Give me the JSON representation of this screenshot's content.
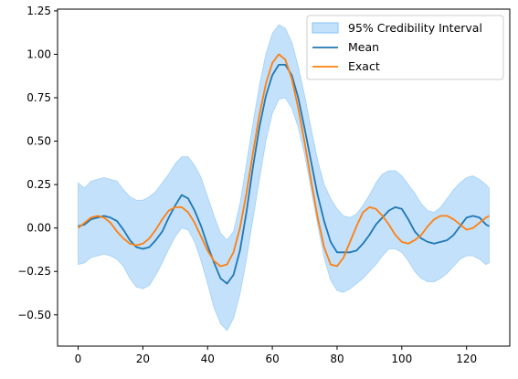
{
  "chart_data": {
    "type": "line",
    "title": "",
    "xlabel": "",
    "ylabel": "",
    "xlim": [
      -6.35,
      133.35
    ],
    "ylim": [
      -0.68,
      1.26
    ],
    "xticks": [
      0,
      20,
      40,
      60,
      80,
      100,
      120
    ],
    "xtick_labels": [
      "0",
      "20",
      "40",
      "60",
      "80",
      "100",
      "120"
    ],
    "yticks": [
      -0.5,
      -0.25,
      0.0,
      0.25,
      0.5,
      0.75,
      1.0,
      1.25
    ],
    "ytick_labels": [
      "−0.50",
      "−0.25",
      "0.00",
      "0.25",
      "0.50",
      "0.75",
      "1.00",
      "1.25"
    ],
    "grid": false,
    "legend_position": "top-right",
    "band": {
      "name": "95% Credibility Interval",
      "color": "#87c4f5",
      "x": [
        0,
        2,
        4,
        6,
        8,
        10,
        12,
        14,
        16,
        18,
        20,
        22,
        24,
        26,
        28,
        30,
        32,
        34,
        36,
        38,
        40,
        42,
        44,
        46,
        48,
        50,
        52,
        54,
        56,
        58,
        60,
        62,
        64,
        66,
        68,
        70,
        72,
        74,
        76,
        78,
        80,
        82,
        84,
        86,
        88,
        90,
        92,
        94,
        96,
        98,
        100,
        102,
        104,
        106,
        108,
        110,
        112,
        114,
        116,
        118,
        120,
        122,
        124,
        126,
        127
      ],
      "upper": [
        0.26,
        0.23,
        0.27,
        0.28,
        0.29,
        0.28,
        0.27,
        0.22,
        0.18,
        0.16,
        0.16,
        0.18,
        0.21,
        0.26,
        0.31,
        0.37,
        0.41,
        0.41,
        0.36,
        0.29,
        0.18,
        0.07,
        -0.03,
        -0.07,
        -0.02,
        0.14,
        0.37,
        0.6,
        0.82,
        1.0,
        1.12,
        1.17,
        1.15,
        1.07,
        0.93,
        0.76,
        0.57,
        0.39,
        0.25,
        0.17,
        0.11,
        0.07,
        0.06,
        0.08,
        0.13,
        0.19,
        0.26,
        0.31,
        0.33,
        0.33,
        0.3,
        0.25,
        0.2,
        0.14,
        0.1,
        0.09,
        0.12,
        0.17,
        0.22,
        0.26,
        0.29,
        0.3,
        0.28,
        0.25,
        0.23
      ],
      "lower": [
        -0.21,
        -0.2,
        -0.17,
        -0.16,
        -0.15,
        -0.16,
        -0.18,
        -0.22,
        -0.29,
        -0.34,
        -0.35,
        -0.33,
        -0.27,
        -0.2,
        -0.12,
        -0.05,
        0.0,
        -0.01,
        -0.08,
        -0.19,
        -0.32,
        -0.46,
        -0.55,
        -0.59,
        -0.52,
        -0.38,
        -0.18,
        0.05,
        0.28,
        0.5,
        0.66,
        0.74,
        0.75,
        0.69,
        0.58,
        0.42,
        0.22,
        0.02,
        -0.17,
        -0.3,
        -0.36,
        -0.37,
        -0.35,
        -0.32,
        -0.29,
        -0.25,
        -0.21,
        -0.16,
        -0.12,
        -0.12,
        -0.14,
        -0.19,
        -0.25,
        -0.29,
        -0.31,
        -0.31,
        -0.29,
        -0.26,
        -0.22,
        -0.18,
        -0.16,
        -0.16,
        -0.18,
        -0.21,
        -0.2
      ]
    },
    "series": [
      {
        "name": "Mean",
        "color": "#1f77b4",
        "x": [
          0,
          2,
          4,
          6,
          8,
          10,
          12,
          14,
          16,
          18,
          20,
          22,
          24,
          26,
          28,
          30,
          32,
          34,
          36,
          38,
          40,
          42,
          44,
          46,
          48,
          50,
          52,
          54,
          56,
          58,
          60,
          62,
          64,
          66,
          68,
          70,
          72,
          74,
          76,
          78,
          80,
          82,
          84,
          86,
          88,
          90,
          92,
          94,
          96,
          98,
          100,
          102,
          104,
          106,
          108,
          110,
          112,
          114,
          116,
          118,
          120,
          122,
          124,
          126,
          127
        ],
        "y": [
          0.01,
          0.02,
          0.05,
          0.06,
          0.07,
          0.06,
          0.04,
          -0.01,
          -0.07,
          -0.11,
          -0.12,
          -0.11,
          -0.07,
          -0.02,
          0.06,
          0.13,
          0.19,
          0.17,
          0.1,
          0.01,
          -0.1,
          -0.2,
          -0.29,
          -0.32,
          -0.27,
          -0.13,
          0.09,
          0.35,
          0.58,
          0.76,
          0.88,
          0.94,
          0.94,
          0.88,
          0.75,
          0.57,
          0.38,
          0.19,
          0.04,
          -0.08,
          -0.14,
          -0.14,
          -0.14,
          -0.13,
          -0.09,
          -0.04,
          0.02,
          0.06,
          0.1,
          0.12,
          0.11,
          0.05,
          -0.02,
          -0.06,
          -0.08,
          -0.09,
          -0.08,
          -0.07,
          -0.04,
          0.01,
          0.06,
          0.07,
          0.06,
          0.02,
          0.01
        ]
      },
      {
        "name": "Exact",
        "color": "#ff7f0e",
        "x": [
          0,
          2,
          4,
          6,
          8,
          10,
          12,
          14,
          16,
          18,
          20,
          22,
          24,
          26,
          28,
          30,
          32,
          34,
          36,
          38,
          40,
          42,
          44,
          46,
          48,
          50,
          52,
          54,
          56,
          58,
          60,
          62,
          64,
          66,
          68,
          70,
          72,
          74,
          76,
          78,
          80,
          82,
          84,
          86,
          88,
          90,
          92,
          94,
          96,
          98,
          100,
          102,
          104,
          106,
          108,
          110,
          112,
          114,
          116,
          118,
          120,
          122,
          124,
          126,
          127
        ],
        "y": [
          0.0,
          0.03,
          0.06,
          0.07,
          0.06,
          0.03,
          -0.02,
          -0.06,
          -0.09,
          -0.1,
          -0.09,
          -0.06,
          -0.01,
          0.05,
          0.1,
          0.12,
          0.12,
          0.09,
          0.03,
          -0.05,
          -0.13,
          -0.19,
          -0.22,
          -0.21,
          -0.14,
          0.0,
          0.2,
          0.43,
          0.65,
          0.83,
          0.95,
          1.0,
          0.97,
          0.86,
          0.69,
          0.49,
          0.27,
          0.06,
          -0.11,
          -0.21,
          -0.22,
          -0.17,
          -0.08,
          0.01,
          0.09,
          0.12,
          0.11,
          0.07,
          0.02,
          -0.04,
          -0.08,
          -0.09,
          -0.07,
          -0.04,
          0.01,
          0.05,
          0.07,
          0.07,
          0.05,
          0.02,
          -0.01,
          0.0,
          0.03,
          0.06,
          0.07
        ]
      }
    ]
  }
}
